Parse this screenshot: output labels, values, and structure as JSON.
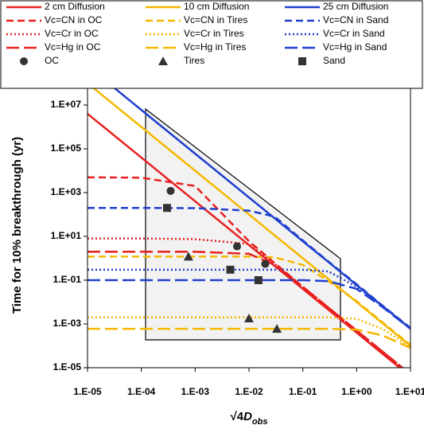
{
  "chart_data": {
    "type": "line",
    "x_label_parts": [
      "√4",
      "D",
      "obs"
    ],
    "y_label": "Time for 10% breakthrough (yr)",
    "log_x": true,
    "log_y": true,
    "xlim": [
      1e-05,
      10
    ],
    "ylim": [
      1e-05,
      100000000
    ],
    "xticks": [
      {
        "value": 1e-05,
        "label": "1.E-05"
      },
      {
        "value": 0.0001,
        "label": "1.E-04"
      },
      {
        "value": 0.001,
        "label": "1.E-03"
      },
      {
        "value": 0.01,
        "label": "1.E-02"
      },
      {
        "value": 0.1,
        "label": "1.E-01"
      },
      {
        "value": 1,
        "label": "1.E+00"
      },
      {
        "value": 10,
        "label": "1.E+01"
      }
    ],
    "yticks": [
      {
        "value": 1e-05,
        "label": "1.E-05"
      },
      {
        "value": 0.001,
        "label": "1.E-03"
      },
      {
        "value": 0.1,
        "label": "1.E-01"
      },
      {
        "value": 10,
        "label": "1.E+01"
      },
      {
        "value": 1000,
        "label": "1.E+03"
      },
      {
        "value": 100000,
        "label": "1.E+05"
      },
      {
        "value": 10000000,
        "label": "1.E+07"
      }
    ],
    "x": [
      1e-05,
      0.0001,
      0.001,
      0.01,
      0.03,
      0.1,
      0.3,
      1,
      3,
      10
    ],
    "series": [
      {
        "name": "2 cm Diffusion",
        "color": "#e8201f",
        "dash": "solid",
        "values": [
          4000000,
          40000,
          400,
          4,
          0.444,
          0.04,
          0.0044,
          0.0004,
          4.4e-05,
          4e-06
        ]
      },
      {
        "name": "10 cm Diffusion",
        "color": "#f5b800",
        "dash": "solid",
        "values": [
          100000000,
          1000000,
          10000,
          100,
          11.1,
          1,
          0.111,
          0.01,
          0.0011,
          0.0001
        ]
      },
      {
        "name": "25 cm Diffusion",
        "color": "#1f3fcf",
        "dash": "solid",
        "values": [
          600000000,
          6000000,
          60000,
          600,
          66.7,
          6,
          0.667,
          0.06,
          0.0067,
          0.0006
        ]
      },
      {
        "name": "Vc=CN in OC",
        "color": "#e8201f",
        "dash": "dashed",
        "values": [
          5000,
          4800,
          2000,
          6,
          0.6,
          0.05,
          0.0055,
          0.0005,
          5.5e-05,
          5e-06
        ]
      },
      {
        "name": "Vc=CN in Tires",
        "color": "#f5b800",
        "dash": "dashed",
        "values": [
          1.2,
          1.2,
          1.2,
          1.2,
          1.1,
          0.5,
          0.09,
          0.011,
          0.0012,
          0.00011
        ]
      },
      {
        "name": "Vc=CN in Sand",
        "color": "#1f3fcf",
        "dash": "dashed",
        "values": [
          200,
          200,
          195,
          150,
          80,
          6.5,
          0.7,
          0.065,
          0.007,
          0.00065
        ]
      },
      {
        "name": "Vc=Cr in OC",
        "color": "#e8201f",
        "dash": "dotted",
        "values": [
          8,
          8,
          7.5,
          4.5,
          0.55,
          0.05,
          0.0055,
          0.0005,
          5.5e-05,
          5e-06
        ]
      },
      {
        "name": "Vc=Cr in Tires",
        "color": "#f5b800",
        "dash": "dotted",
        "values": [
          0.002,
          0.002,
          0.002,
          0.002,
          0.002,
          0.002,
          0.002,
          0.0017,
          0.0006,
          9e-05
        ]
      },
      {
        "name": "Vc=Cr in Sand",
        "color": "#1f3fcf",
        "dash": "dotted",
        "values": [
          0.3,
          0.3,
          0.3,
          0.3,
          0.3,
          0.3,
          0.25,
          0.05,
          0.0065,
          0.00065
        ]
      },
      {
        "name": "Vc=Hg in OC",
        "color": "#e8201f",
        "dash": "longdash",
        "values": [
          2,
          2,
          2,
          1.6,
          0.5,
          0.05,
          0.0055,
          0.0005,
          5.5e-05,
          5e-06
        ]
      },
      {
        "name": "Vc=Hg in Tires",
        "color": "#f5b800",
        "dash": "longdash",
        "values": [
          0.0006,
          0.0006,
          0.0006,
          0.0006,
          0.0006,
          0.0006,
          0.0006,
          0.00055,
          0.0003,
          8e-05
        ]
      },
      {
        "name": "Vc=Hg in Sand",
        "color": "#1f3fcf",
        "dash": "longdash",
        "values": [
          0.1,
          0.1,
          0.1,
          0.1,
          0.1,
          0.1,
          0.09,
          0.04,
          0.006,
          0.0006
        ]
      }
    ],
    "points": [
      {
        "name": "OC",
        "marker": "circle",
        "color": "#333333",
        "x": [
          0.00035,
          0.006,
          0.02
        ],
        "values": [
          1200,
          3.5,
          0.55
        ]
      },
      {
        "name": "Tires",
        "marker": "triangle",
        "color": "#333333",
        "x": [
          0.00075,
          0.01,
          0.033
        ],
        "values": [
          1.2,
          0.0018,
          0.0006
        ]
      },
      {
        "name": "Sand",
        "marker": "square",
        "color": "#333333",
        "x": [
          0.0003,
          0.0045,
          0.015
        ],
        "values": [
          200,
          0.3,
          0.1
        ]
      }
    ]
  }
}
